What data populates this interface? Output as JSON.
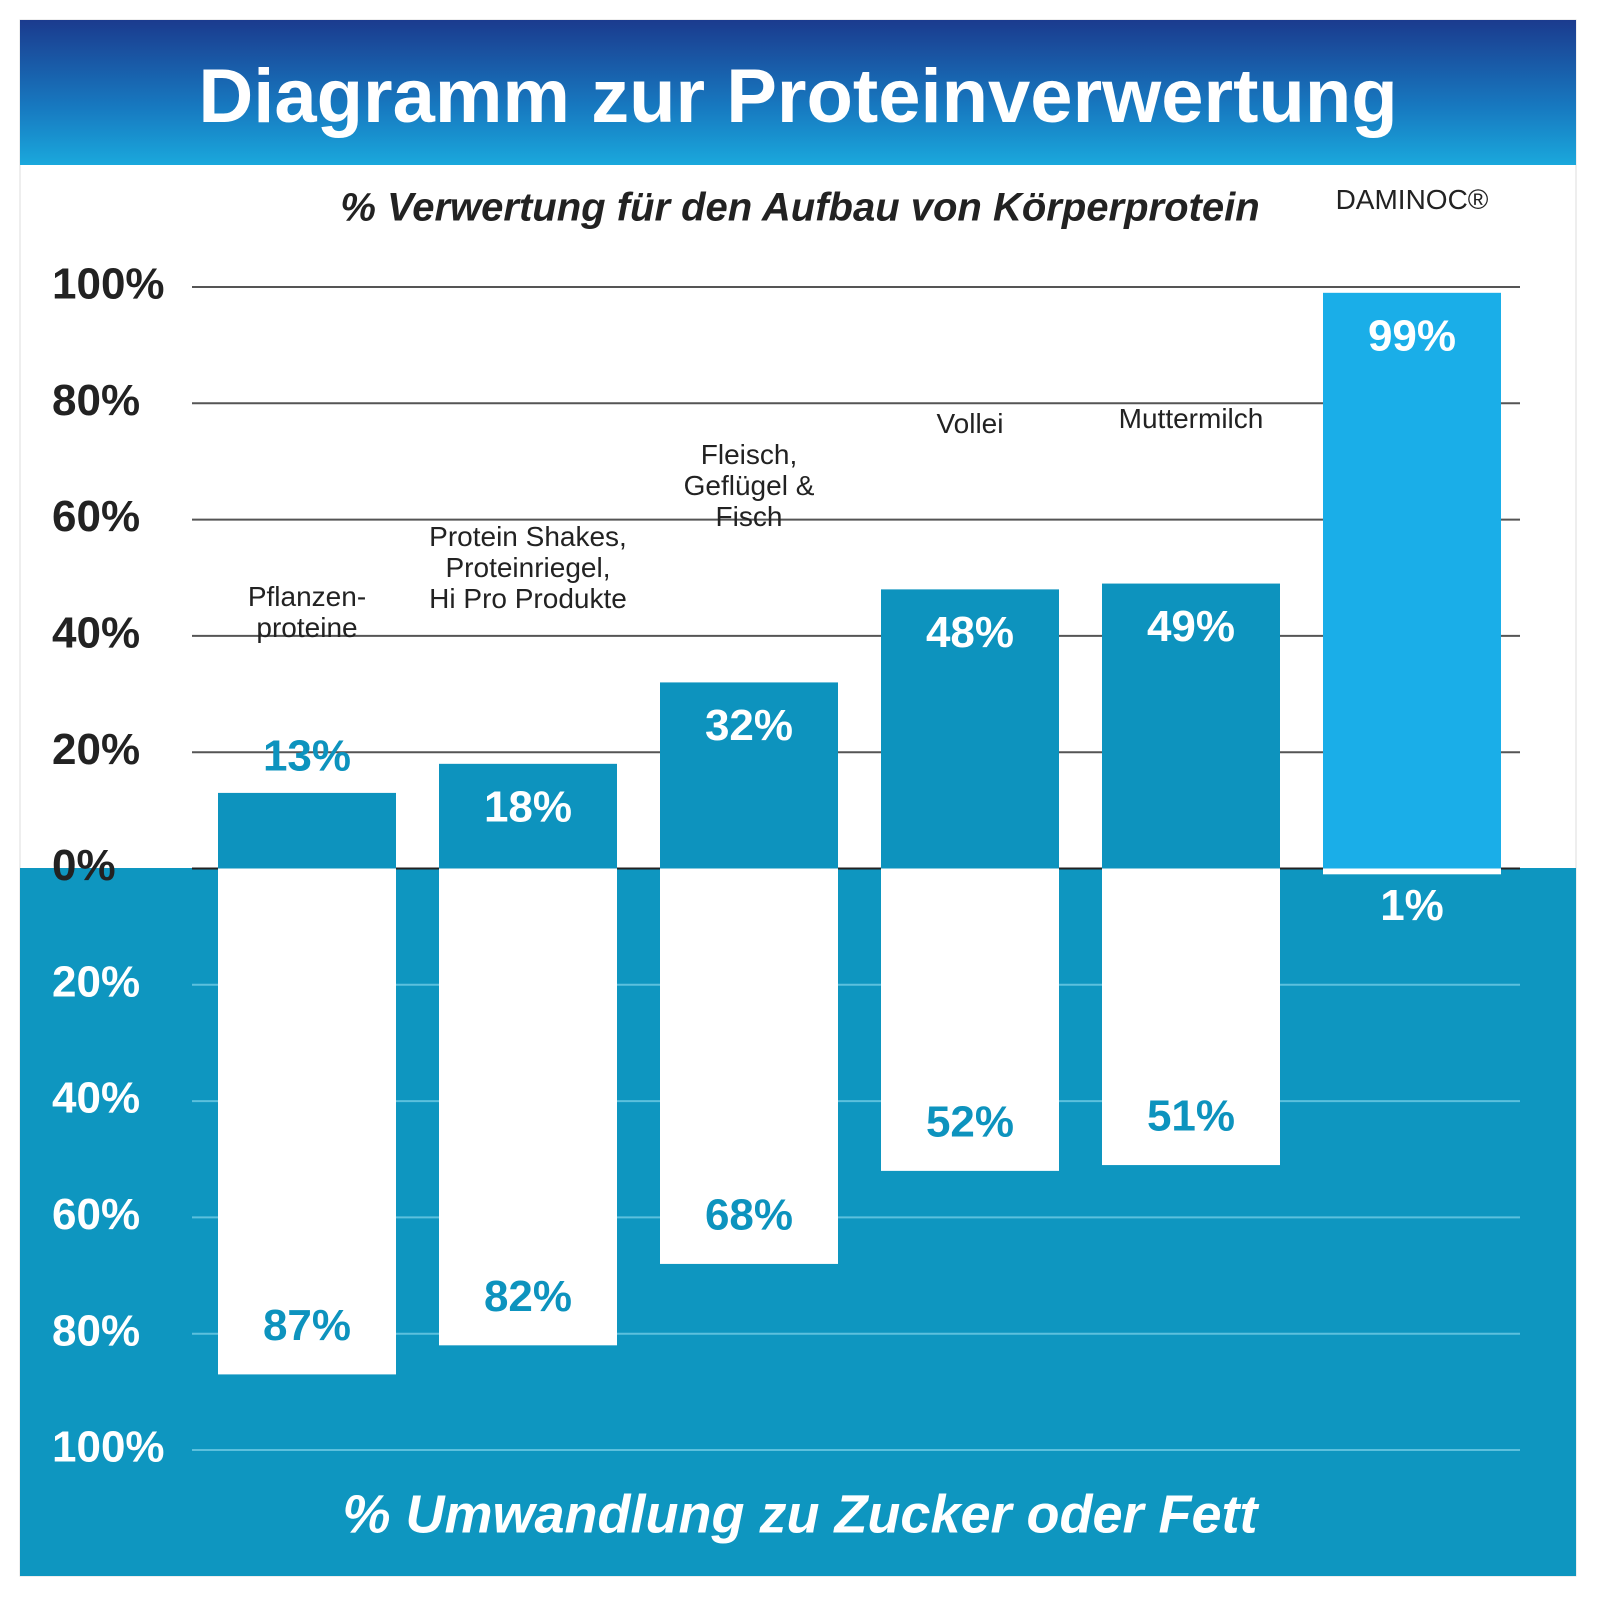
{
  "chart_data": {
    "type": "diverging-bar",
    "title": "Diagramm zur Proteinverwertung",
    "subtitle": "% Verwertung für den Aufbau von Körperprotein",
    "bottom_label": "% Umwandlung zu Zucker oder Fett",
    "categories": [
      "Pflanzen-\nproteine",
      "Protein Shakes,\nProteinriegel,\nHi Pro Produkte",
      "Fleisch,\nGeflügel &\nFisch",
      "Vollei",
      "Muttermilch",
      "DAMINOC®"
    ],
    "series": [
      {
        "direction": "up",
        "colors": [
          "#0d93be",
          "#0d93be",
          "#0d93be",
          "#0d93be",
          "#0d93be",
          "#1aaee8"
        ],
        "values": [
          13,
          18,
          32,
          48,
          49,
          99
        ],
        "value_labels": [
          "13%",
          "18%",
          "32%",
          "48%",
          "49%",
          "99%"
        ]
      },
      {
        "direction": "down",
        "colors": [
          "#ffffff",
          "#ffffff",
          "#ffffff",
          "#ffffff",
          "#ffffff",
          "#ffffff"
        ],
        "values": [
          87,
          82,
          68,
          52,
          51,
          1
        ],
        "value_labels": [
          "87%",
          "82%",
          "68%",
          "52%",
          "51%",
          "1%"
        ]
      }
    ],
    "ylim": [
      -100,
      100
    ],
    "yticks": [
      {
        "value": 100,
        "label": "100%"
      },
      {
        "value": 80,
        "label": "80%"
      },
      {
        "value": 60,
        "label": "60%"
      },
      {
        "value": 40,
        "label": "40%"
      },
      {
        "value": 20,
        "label": "20%"
      },
      {
        "value": 0,
        "label": "0%"
      },
      {
        "value": -20,
        "label": "20%"
      },
      {
        "value": -40,
        "label": "40%"
      },
      {
        "value": -60,
        "label": "60%"
      },
      {
        "value": -80,
        "label": "80%"
      },
      {
        "value": -100,
        "label": "100%"
      }
    ],
    "grid": true
  }
}
